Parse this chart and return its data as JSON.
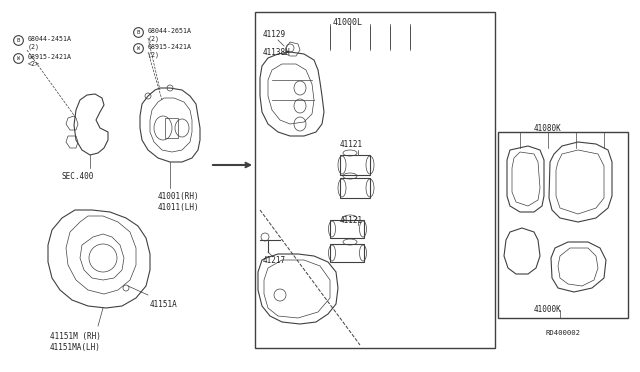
{
  "background_color": "#ffffff",
  "fig_width": 6.4,
  "fig_height": 3.72,
  "dpi": 100,
  "labels": {
    "sec400": "SEC.400",
    "p08044_2451A": "08044-2451A\n(2)",
    "p08915_2421A_left": "08915-2421A\n<2>",
    "p08044_2651A": "08044-2651A\n(2)",
    "p08915_2421A_right": "08915-2421A\n(2)",
    "p41001": "41001(RH)\n41011(LH)",
    "p41151A": "41151A",
    "p41151M": "41151M (RH)\n41151MA(LH)",
    "p41000L": "41000L",
    "p41129": "41129",
    "p41138H": "41138H",
    "p41121_top": "41121",
    "p41121_bot": "41121",
    "p41217": "41217",
    "p41080K": "41080K",
    "p41000K": "41000K",
    "p_rd": "RD400002"
  },
  "lc": "#404040",
  "tc": "#222222",
  "fs": 5.5,
  "fss": 4.8
}
